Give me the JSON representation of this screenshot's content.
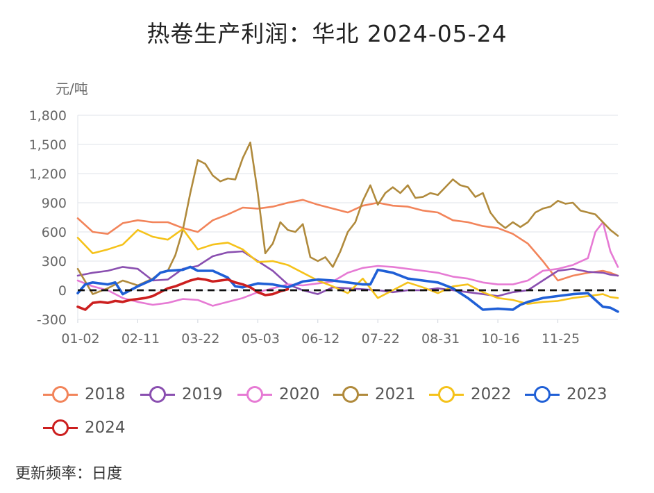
{
  "title": "热卷生产利润：华北 2024-05-24",
  "footer": "更新频率：日度",
  "chart_data": {
    "type": "line",
    "title": "热卷生产利润：华北 2024-05-24",
    "ylabel": "元/吨",
    "ylim": [
      -300,
      1800
    ],
    "yticks": [
      -300,
      0,
      300,
      600,
      900,
      1200,
      1500,
      1800
    ],
    "ytick_labels": [
      "-300",
      "0",
      "300",
      "600",
      "900",
      "1,200",
      "1,500",
      "1,800"
    ],
    "xlim": [
      0,
      360
    ],
    "xticks": [
      0,
      40,
      80,
      120,
      160,
      200,
      240,
      280,
      320
    ],
    "xtick_labels": [
      "01-02",
      "02-11",
      "03-22",
      "05-03",
      "06-12",
      "07-22",
      "08-31",
      "10-16",
      "11-25"
    ],
    "grid": true,
    "zero_line": "dashed",
    "legend_position": "bottom",
    "series": [
      {
        "name": "2018",
        "color": "#f2845a",
        "x": [
          0,
          10,
          20,
          30,
          40,
          50,
          60,
          70,
          80,
          90,
          100,
          110,
          120,
          130,
          140,
          150,
          160,
          170,
          180,
          190,
          200,
          210,
          220,
          230,
          240,
          250,
          260,
          270,
          280,
          290,
          300,
          310,
          320,
          330,
          340,
          350,
          355,
          360
        ],
        "values": [
          740,
          600,
          580,
          690,
          720,
          700,
          700,
          640,
          600,
          720,
          780,
          850,
          840,
          860,
          900,
          930,
          880,
          840,
          800,
          870,
          900,
          870,
          860,
          820,
          800,
          720,
          700,
          660,
          640,
          580,
          480,
          300,
          100,
          150,
          180,
          200,
          180,
          150
        ]
      },
      {
        "name": "2019",
        "color": "#8a4fb0",
        "x": [
          0,
          10,
          20,
          30,
          40,
          50,
          60,
          70,
          80,
          90,
          100,
          110,
          120,
          130,
          140,
          150,
          160,
          170,
          180,
          190,
          200,
          210,
          220,
          230,
          240,
          250,
          260,
          270,
          280,
          290,
          300,
          310,
          320,
          330,
          340,
          350,
          355,
          360
        ],
        "values": [
          150,
          180,
          200,
          240,
          220,
          100,
          110,
          220,
          250,
          350,
          390,
          400,
          300,
          200,
          60,
          0,
          -40,
          30,
          20,
          10,
          0,
          -20,
          0,
          0,
          20,
          0,
          -20,
          -40,
          -60,
          -20,
          0,
          100,
          200,
          220,
          190,
          180,
          160,
          150
        ]
      },
      {
        "name": "2020",
        "color": "#e67ad4",
        "x": [
          0,
          10,
          20,
          30,
          40,
          50,
          60,
          70,
          80,
          90,
          100,
          110,
          120,
          130,
          140,
          150,
          160,
          170,
          180,
          190,
          200,
          210,
          220,
          230,
          240,
          250,
          260,
          270,
          280,
          290,
          300,
          310,
          320,
          330,
          340,
          345,
          350,
          355,
          360
        ],
        "values": [
          100,
          40,
          0,
          -80,
          -120,
          -150,
          -130,
          -90,
          -100,
          -160,
          -120,
          -80,
          -20,
          20,
          60,
          50,
          70,
          90,
          180,
          230,
          250,
          240,
          220,
          200,
          180,
          140,
          120,
          80,
          60,
          60,
          100,
          200,
          220,
          260,
          330,
          600,
          700,
          400,
          240
        ]
      },
      {
        "name": "2021",
        "color": "#b08a3c",
        "x": [
          0,
          10,
          20,
          30,
          40,
          50,
          55,
          60,
          65,
          70,
          75,
          80,
          85,
          90,
          95,
          100,
          105,
          110,
          115,
          120,
          125,
          130,
          135,
          140,
          145,
          150,
          155,
          160,
          165,
          170,
          175,
          180,
          185,
          190,
          195,
          200,
          205,
          210,
          215,
          220,
          225,
          230,
          235,
          240,
          245,
          250,
          255,
          260,
          265,
          270,
          275,
          280,
          285,
          290,
          295,
          300,
          305,
          310,
          315,
          320,
          325,
          330,
          335,
          340,
          345,
          350,
          355,
          360
        ],
        "values": [
          220,
          -40,
          20,
          100,
          50,
          120,
          180,
          200,
          360,
          620,
          1000,
          1340,
          1300,
          1180,
          1120,
          1150,
          1140,
          1360,
          1520,
          1000,
          380,
          480,
          700,
          620,
          600,
          680,
          340,
          300,
          340,
          240,
          400,
          600,
          700,
          920,
          1080,
          880,
          1000,
          1060,
          1000,
          1080,
          950,
          960,
          1000,
          980,
          1060,
          1140,
          1080,
          1060,
          960,
          1000,
          800,
          700,
          640,
          700,
          650,
          700,
          800,
          840,
          860,
          920,
          890,
          900,
          820,
          800,
          780,
          700,
          620,
          560
        ]
      },
      {
        "name": "2022",
        "color": "#f5c21a",
        "x": [
          0,
          10,
          20,
          30,
          40,
          50,
          60,
          70,
          80,
          90,
          100,
          110,
          120,
          130,
          140,
          150,
          160,
          170,
          180,
          190,
          200,
          210,
          220,
          230,
          240,
          250,
          260,
          270,
          280,
          290,
          300,
          310,
          320,
          330,
          340,
          350,
          355,
          360
        ],
        "values": [
          540,
          380,
          420,
          470,
          620,
          550,
          520,
          630,
          420,
          470,
          490,
          420,
          290,
          300,
          260,
          180,
          100,
          40,
          -30,
          120,
          -80,
          0,
          80,
          30,
          -30,
          40,
          60,
          -20,
          -80,
          -100,
          -140,
          -120,
          -110,
          -80,
          -60,
          -40,
          -70,
          -80
        ]
      },
      {
        "name": "2023",
        "color": "#1f5fd6",
        "x": [
          0,
          5,
          10,
          20,
          25,
          30,
          40,
          50,
          55,
          60,
          70,
          75,
          80,
          90,
          100,
          105,
          110,
          120,
          130,
          140,
          150,
          160,
          170,
          180,
          190,
          195,
          200,
          210,
          220,
          230,
          240,
          250,
          260,
          270,
          280,
          290,
          295,
          300,
          310,
          320,
          330,
          340,
          345,
          350,
          355,
          360
        ],
        "values": [
          -30,
          60,
          80,
          60,
          80,
          -40,
          40,
          110,
          180,
          200,
          210,
          240,
          200,
          200,
          130,
          40,
          30,
          70,
          60,
          30,
          90,
          110,
          100,
          80,
          60,
          60,
          210,
          180,
          120,
          100,
          80,
          20,
          -80,
          -200,
          -190,
          -200,
          -150,
          -120,
          -80,
          -60,
          -40,
          -30,
          -100,
          -170,
          -180,
          -220
        ]
      },
      {
        "name": "2024",
        "color": "#cc1f1f",
        "x": [
          0,
          5,
          10,
          15,
          20,
          25,
          30,
          35,
          40,
          45,
          50,
          55,
          60,
          65,
          70,
          75,
          80,
          85,
          90,
          95,
          100,
          105,
          110,
          115,
          120,
          125,
          130,
          135,
          140
        ],
        "values": [
          -170,
          -200,
          -130,
          -120,
          -130,
          -110,
          -120,
          -100,
          -90,
          -80,
          -60,
          -20,
          20,
          40,
          70,
          100,
          120,
          110,
          90,
          100,
          110,
          80,
          60,
          30,
          -20,
          -50,
          -40,
          -10,
          10
        ]
      }
    ]
  }
}
